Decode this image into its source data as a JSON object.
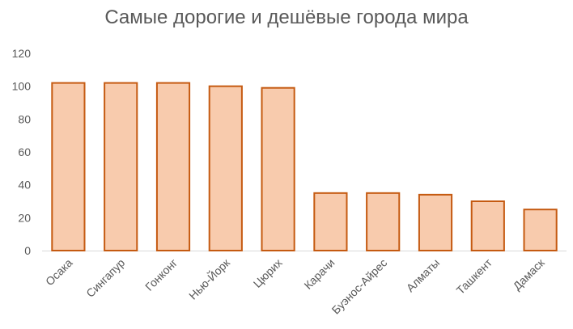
{
  "chart_data": {
    "type": "bar",
    "title": "Самые дорогие и дешёвые города мира",
    "xlabel": "",
    "ylabel": "",
    "categories": [
      "Осака",
      "Сингапур",
      "Гонконг",
      "Нью-Йорк",
      "Цюрих",
      "Карачи",
      "Буэнос-Айрес",
      "Алматы",
      "Ташкент",
      "Дамаск"
    ],
    "values": [
      102,
      102,
      102,
      100,
      99,
      35,
      35,
      34,
      30,
      25
    ],
    "ylim": [
      0,
      120
    ],
    "yticks": [
      0,
      20,
      40,
      60,
      80,
      100,
      120
    ],
    "grid": false,
    "legend": "none",
    "colors": {
      "bar_fill": "#f8cbad",
      "bar_stroke": "#c55a11",
      "axis": "#d9d9d9",
      "text": "#595959"
    }
  }
}
